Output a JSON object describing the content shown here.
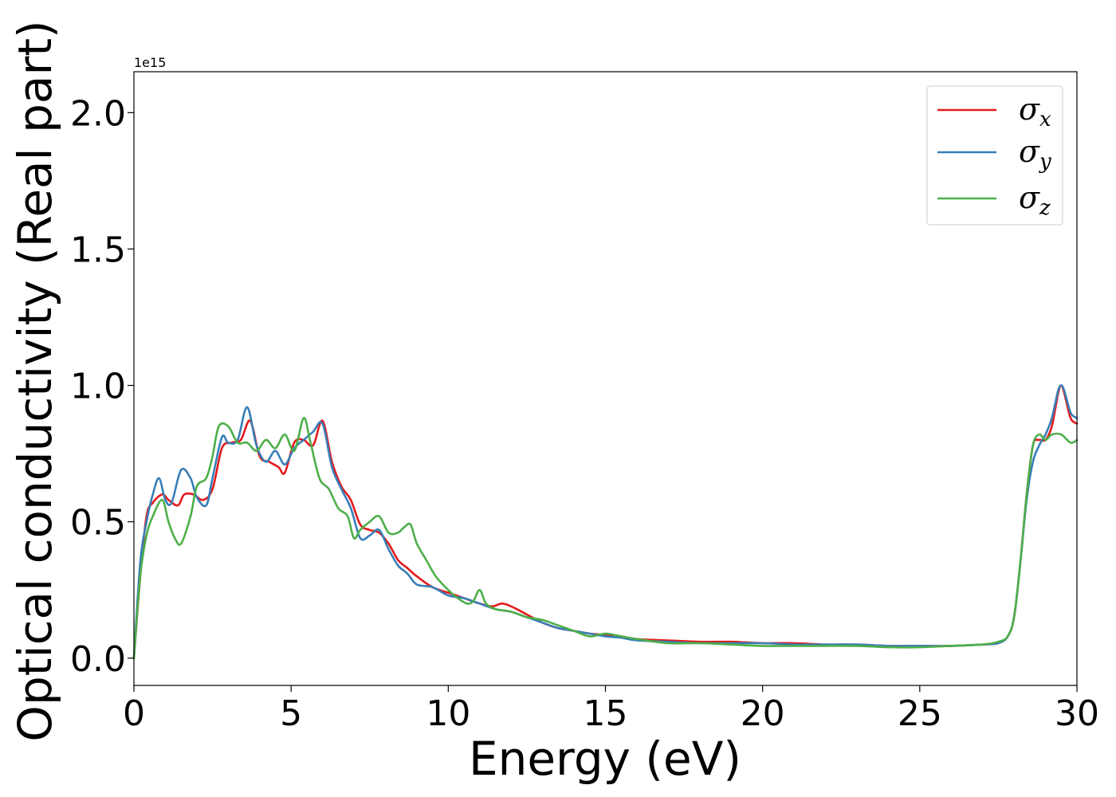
{
  "chart_data": {
    "type": "line",
    "title": "",
    "xlabel": "Energy (eV)",
    "ylabel": "Optical conductivity (Real part)",
    "y_offset_label": "1e15",
    "y_scale": 1000000000000000.0,
    "xlim": [
      0,
      30
    ],
    "ylim": [
      -0.1,
      2.15
    ],
    "xticks": [
      0,
      5,
      10,
      15,
      20,
      25,
      30
    ],
    "xtick_labels": [
      "0",
      "5",
      "10",
      "15",
      "20",
      "25",
      "30"
    ],
    "yticks": [
      0.0,
      0.5,
      1.0,
      1.5,
      2.0
    ],
    "ytick_labels": [
      "0.0",
      "0.5",
      "1.0",
      "1.5",
      "2.0"
    ],
    "grid": false,
    "legend_position": "top-right",
    "series": [
      {
        "name": "σx",
        "symbol": "σ",
        "subscript": "x",
        "color": "#e41a1c",
        "x": [
          0,
          0.2,
          0.4,
          0.6,
          0.9,
          1.1,
          1.4,
          1.6,
          1.9,
          2.2,
          2.5,
          2.8,
          3.1,
          3.4,
          3.7,
          4.0,
          4.3,
          4.6,
          4.8,
          5.1,
          5.4,
          5.7,
          6.0,
          6.3,
          6.6,
          6.9,
          7.2,
          7.5,
          7.8,
          8.1,
          8.4,
          8.7,
          9.0,
          9.5,
          10.0,
          10.5,
          11.0,
          11.4,
          11.7,
          12.0,
          12.5,
          13.0,
          13.5,
          14.0,
          14.5,
          15.0,
          15.5,
          16.0,
          17.0,
          18.0,
          19.0,
          20.0,
          21.0,
          22.0,
          23.0,
          24.0,
          25.0,
          26.0,
          27.0,
          27.5,
          27.8,
          28.0,
          28.2,
          28.4,
          28.6,
          28.8,
          29.0,
          29.2,
          29.4,
          29.5,
          29.6,
          29.8,
          30.0
        ],
        "y": [
          0.0,
          0.3,
          0.52,
          0.57,
          0.6,
          0.58,
          0.56,
          0.6,
          0.6,
          0.58,
          0.62,
          0.77,
          0.79,
          0.8,
          0.87,
          0.74,
          0.72,
          0.7,
          0.68,
          0.79,
          0.8,
          0.78,
          0.87,
          0.72,
          0.63,
          0.58,
          0.49,
          0.47,
          0.46,
          0.42,
          0.36,
          0.33,
          0.3,
          0.26,
          0.24,
          0.22,
          0.2,
          0.19,
          0.2,
          0.19,
          0.16,
          0.13,
          0.11,
          0.1,
          0.09,
          0.085,
          0.08,
          0.07,
          0.065,
          0.06,
          0.06,
          0.055,
          0.055,
          0.05,
          0.05,
          0.045,
          0.045,
          0.045,
          0.05,
          0.055,
          0.08,
          0.15,
          0.35,
          0.6,
          0.78,
          0.8,
          0.8,
          0.85,
          0.97,
          1.0,
          0.97,
          0.88,
          0.86
        ]
      },
      {
        "name": "σy",
        "symbol": "σ",
        "subscript": "y",
        "color": "#377eb8",
        "x": [
          0,
          0.2,
          0.4,
          0.6,
          0.8,
          1.0,
          1.2,
          1.5,
          1.8,
          2.0,
          2.3,
          2.5,
          2.8,
          3.0,
          3.3,
          3.6,
          3.9,
          4.2,
          4.5,
          4.8,
          5.1,
          5.4,
          5.7,
          6.0,
          6.3,
          6.6,
          6.9,
          7.2,
          7.5,
          7.8,
          8.1,
          8.4,
          8.7,
          9.0,
          9.5,
          10.0,
          10.5,
          11.0,
          11.5,
          12.0,
          12.5,
          13.0,
          13.5,
          14.0,
          14.5,
          15.0,
          15.5,
          16.0,
          17.0,
          18.0,
          19.0,
          20.0,
          21.0,
          22.0,
          23.0,
          24.0,
          25.0,
          26.0,
          27.0,
          27.5,
          27.8,
          28.0,
          28.2,
          28.4,
          28.6,
          28.8,
          29.0,
          29.2,
          29.4,
          29.5,
          29.6,
          29.8,
          30.0
        ],
        "y": [
          0.0,
          0.35,
          0.5,
          0.6,
          0.66,
          0.58,
          0.57,
          0.69,
          0.66,
          0.59,
          0.56,
          0.66,
          0.81,
          0.79,
          0.8,
          0.92,
          0.78,
          0.72,
          0.76,
          0.71,
          0.77,
          0.8,
          0.83,
          0.86,
          0.7,
          0.62,
          0.55,
          0.44,
          0.45,
          0.47,
          0.4,
          0.34,
          0.31,
          0.27,
          0.26,
          0.23,
          0.22,
          0.2,
          0.18,
          0.17,
          0.15,
          0.13,
          0.11,
          0.1,
          0.09,
          0.08,
          0.075,
          0.065,
          0.06,
          0.055,
          0.055,
          0.055,
          0.05,
          0.05,
          0.05,
          0.045,
          0.045,
          0.045,
          0.05,
          0.055,
          0.08,
          0.15,
          0.35,
          0.58,
          0.72,
          0.78,
          0.82,
          0.88,
          0.98,
          1.0,
          0.98,
          0.9,
          0.88
        ]
      },
      {
        "name": "σz",
        "symbol": "σ",
        "subscript": "z",
        "color": "#4daf4a",
        "x": [
          0,
          0.2,
          0.4,
          0.6,
          0.9,
          1.1,
          1.3,
          1.5,
          1.8,
          2.0,
          2.3,
          2.5,
          2.7,
          3.0,
          3.3,
          3.6,
          3.9,
          4.2,
          4.5,
          4.8,
          5.1,
          5.4,
          5.6,
          5.9,
          6.2,
          6.5,
          6.8,
          7.0,
          7.2,
          7.5,
          7.8,
          8.1,
          8.4,
          8.6,
          8.8,
          9.0,
          9.3,
          9.6,
          10.0,
          10.3,
          10.6,
          10.8,
          11.0,
          11.2,
          11.5,
          12.0,
          12.5,
          13.0,
          13.5,
          14.0,
          14.5,
          15.0,
          15.5,
          16.0,
          17.0,
          18.0,
          19.0,
          20.0,
          21.0,
          22.0,
          23.0,
          24.0,
          25.0,
          26.0,
          27.0,
          27.5,
          27.8,
          28.0,
          28.2,
          28.4,
          28.6,
          28.8,
          29.0,
          29.2,
          29.5,
          29.8,
          30.0
        ],
        "y": [
          0.0,
          0.3,
          0.45,
          0.52,
          0.58,
          0.5,
          0.44,
          0.42,
          0.52,
          0.63,
          0.66,
          0.74,
          0.85,
          0.85,
          0.79,
          0.79,
          0.76,
          0.8,
          0.77,
          0.82,
          0.76,
          0.88,
          0.8,
          0.66,
          0.62,
          0.55,
          0.52,
          0.44,
          0.47,
          0.5,
          0.52,
          0.46,
          0.46,
          0.48,
          0.49,
          0.42,
          0.36,
          0.3,
          0.25,
          0.22,
          0.2,
          0.21,
          0.25,
          0.2,
          0.18,
          0.17,
          0.15,
          0.14,
          0.12,
          0.1,
          0.08,
          0.09,
          0.08,
          0.07,
          0.055,
          0.055,
          0.05,
          0.045,
          0.045,
          0.045,
          0.045,
          0.04,
          0.04,
          0.045,
          0.05,
          0.06,
          0.08,
          0.15,
          0.35,
          0.6,
          0.78,
          0.82,
          0.8,
          0.82,
          0.82,
          0.79,
          0.8
        ]
      }
    ]
  }
}
